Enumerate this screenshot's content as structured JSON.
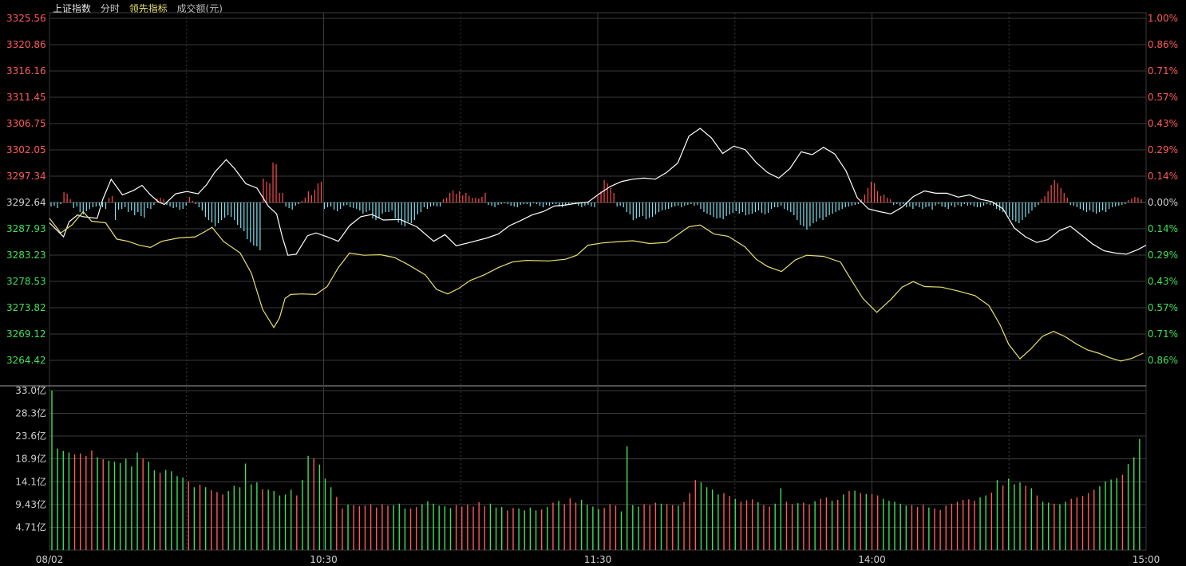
{
  "header": {
    "index_name": "上证指数",
    "mode": "分时",
    "indicator": "领先指标",
    "volume_label": "成交额(元)"
  },
  "colors": {
    "up": "#ff5a5a",
    "down": "#3fe05a",
    "price_line": "#ffffff",
    "lead_line": "#e8e070",
    "bar_up": "#ff4d4d",
    "bar_down": "#7fe3f2",
    "grid": "#3a3a3a",
    "neutral": "#cfcfcf"
  },
  "chart_data": {
    "type": "line",
    "base_price": 3292.64,
    "price_axis": {
      "ticks_up": [
        "3325.56",
        "3320.86",
        "3316.16",
        "3311.45",
        "3306.75",
        "3302.05",
        "3297.34"
      ],
      "tick_zero": "3292.64",
      "ticks_down": [
        "3287.93",
        "3283.23",
        "3278.53",
        "3273.82",
        "3269.12",
        "3264.42"
      ]
    },
    "pct_axis": {
      "ticks_up": [
        "1.00%",
        "0.86%",
        "0.71%",
        "0.57%",
        "0.43%",
        "0.29%",
        "0.14%"
      ],
      "tick_zero": "0.00%",
      "ticks_down": [
        "0.14%",
        "0.29%",
        "0.43%",
        "0.57%",
        "0.71%",
        "0.86%"
      ]
    },
    "volume_axis": {
      "ticks": [
        "33.0亿",
        "28.3亿",
        "23.6亿",
        "18.9亿",
        "14.1亿",
        "9.43亿",
        "4.71亿"
      ],
      "max": 33.0
    },
    "time_axis": [
      "08/02",
      "10:30",
      "11:30",
      "14:00",
      "15:00"
    ],
    "series": [
      {
        "key": "price",
        "points": [
          [
            0,
            3289.0
          ],
          [
            5,
            3286.5
          ],
          [
            7,
            3289.2
          ],
          [
            10,
            3290.4
          ],
          [
            12,
            3290.1
          ],
          [
            17,
            3289.8
          ],
          [
            19,
            3293.2
          ],
          [
            22,
            3296.8
          ],
          [
            26,
            3294.0
          ],
          [
            30,
            3294.8
          ],
          [
            33,
            3295.7
          ],
          [
            36,
            3294.0
          ],
          [
            39,
            3292.7
          ],
          [
            41,
            3292.3
          ],
          [
            45,
            3294.2
          ],
          [
            49,
            3294.6
          ],
          [
            53,
            3294.2
          ],
          [
            56,
            3295.8
          ],
          [
            59,
            3298.1
          ],
          [
            63,
            3300.3
          ],
          [
            66,
            3298.7
          ],
          [
            70,
            3296.0
          ],
          [
            74,
            3295.2
          ],
          [
            78,
            3292.0
          ],
          [
            81,
            3290.6
          ],
          [
            83,
            3286.5
          ],
          [
            85,
            3283.2
          ],
          [
            88,
            3283.4
          ],
          [
            92,
            3286.7
          ],
          [
            95,
            3287.2
          ],
          [
            99,
            3286.5
          ],
          [
            103,
            3285.7
          ],
          [
            107,
            3288.5
          ],
          [
            111,
            3290.1
          ],
          [
            115,
            3290.5
          ],
          [
            119,
            3289.5
          ],
          [
            125,
            3289.6
          ],
          [
            131,
            3288.3
          ],
          [
            137,
            3285.7
          ],
          [
            141,
            3286.9
          ],
          [
            145,
            3284.9
          ],
          [
            150,
            3285.5
          ],
          [
            156,
            3286.3
          ],
          [
            160,
            3287.0
          ],
          [
            164,
            3288.5
          ],
          [
            168,
            3289.4
          ],
          [
            172,
            3290.4
          ],
          [
            176,
            3291.0
          ],
          [
            180,
            3292.0
          ],
          [
            184,
            3292.2
          ],
          [
            188,
            3292.5
          ],
          [
            192,
            3292.7
          ],
          [
            196,
            3294.2
          ],
          [
            200,
            3295.5
          ],
          [
            204,
            3296.4
          ],
          [
            208,
            3296.8
          ],
          [
            212,
            3297.0
          ],
          [
            216,
            3296.8
          ],
          [
            220,
            3298.0
          ],
          [
            224,
            3299.7
          ],
          [
            228,
            3304.5
          ],
          [
            232,
            3305.9
          ],
          [
            236,
            3304.2
          ],
          [
            240,
            3301.4
          ],
          [
            244,
            3302.7
          ],
          [
            248,
            3302.1
          ],
          [
            252,
            3299.8
          ],
          [
            256,
            3298.0
          ],
          [
            260,
            3297.0
          ],
          [
            264,
            3298.7
          ],
          [
            268,
            3301.7
          ],
          [
            272,
            3301.2
          ],
          [
            276,
            3302.5
          ],
          [
            280,
            3301.3
          ],
          [
            284,
            3298.3
          ],
          [
            288,
            3293.5
          ],
          [
            292,
            3291.5
          ],
          [
            296,
            3291.0
          ],
          [
            300,
            3290.6
          ],
          [
            304,
            3291.8
          ],
          [
            308,
            3293.7
          ],
          [
            312,
            3294.7
          ],
          [
            316,
            3294.3
          ],
          [
            320,
            3294.3
          ],
          [
            324,
            3293.6
          ],
          [
            328,
            3294.0
          ],
          [
            332,
            3293.2
          ],
          [
            336,
            3292.8
          ],
          [
            340,
            3291.5
          ],
          [
            344,
            3288.1
          ],
          [
            348,
            3286.5
          ],
          [
            352,
            3285.5
          ],
          [
            356,
            3286.0
          ],
          [
            360,
            3287.6
          ],
          [
            364,
            3288.4
          ],
          [
            368,
            3286.8
          ],
          [
            372,
            3285.2
          ],
          [
            376,
            3284.0
          ],
          [
            380,
            3283.6
          ],
          [
            384,
            3283.4
          ],
          [
            388,
            3284.2
          ],
          [
            391,
            3285.0
          ]
        ]
      },
      {
        "key": "lead",
        "points": [
          [
            0,
            3289.8
          ],
          [
            4,
            3287.2
          ],
          [
            8,
            3288.6
          ],
          [
            12,
            3291.0
          ],
          [
            15,
            3289.3
          ],
          [
            20,
            3289.0
          ],
          [
            24,
            3286.1
          ],
          [
            28,
            3285.7
          ],
          [
            32,
            3285.0
          ],
          [
            36,
            3284.6
          ],
          [
            40,
            3285.7
          ],
          [
            46,
            3286.3
          ],
          [
            52,
            3286.5
          ],
          [
            56,
            3287.6
          ],
          [
            58,
            3288.2
          ],
          [
            62,
            3285.7
          ],
          [
            68,
            3283.6
          ],
          [
            72,
            3280.0
          ],
          [
            76,
            3273.5
          ],
          [
            80,
            3270.3
          ],
          [
            82,
            3272.0
          ],
          [
            84,
            3275.5
          ],
          [
            86,
            3276.2
          ],
          [
            90,
            3276.3
          ],
          [
            95,
            3276.2
          ],
          [
            99,
            3277.6
          ],
          [
            103,
            3281.0
          ],
          [
            107,
            3283.6
          ],
          [
            112,
            3283.2
          ],
          [
            118,
            3283.3
          ],
          [
            123,
            3282.8
          ],
          [
            128,
            3281.5
          ],
          [
            134,
            3279.7
          ],
          [
            138,
            3277.1
          ],
          [
            142,
            3276.3
          ],
          [
            146,
            3277.3
          ],
          [
            150,
            3278.7
          ],
          [
            155,
            3279.7
          ],
          [
            160,
            3281.0
          ],
          [
            165,
            3282.0
          ],
          [
            170,
            3282.3
          ],
          [
            178,
            3282.2
          ],
          [
            184,
            3282.5
          ],
          [
            188,
            3283.2
          ],
          [
            192,
            3285.0
          ],
          [
            197,
            3285.4
          ],
          [
            202,
            3285.6
          ],
          [
            208,
            3285.8
          ],
          [
            214,
            3285.3
          ],
          [
            220,
            3285.5
          ],
          [
            224,
            3286.9
          ],
          [
            228,
            3288.3
          ],
          [
            232,
            3288.6
          ],
          [
            237,
            3287.0
          ],
          [
            242,
            3286.6
          ],
          [
            248,
            3284.7
          ],
          [
            252,
            3282.5
          ],
          [
            256,
            3281.2
          ],
          [
            261,
            3280.3
          ],
          [
            266,
            3282.4
          ],
          [
            270,
            3283.2
          ],
          [
            276,
            3283.0
          ],
          [
            282,
            3282.0
          ],
          [
            286,
            3278.7
          ],
          [
            290,
            3275.5
          ],
          [
            295,
            3273.0
          ],
          [
            300,
            3275.3
          ],
          [
            304,
            3277.5
          ],
          [
            308,
            3278.5
          ],
          [
            312,
            3277.6
          ],
          [
            318,
            3277.5
          ],
          [
            324,
            3276.8
          ],
          [
            330,
            3276.0
          ],
          [
            335,
            3274.2
          ],
          [
            339,
            3270.7
          ],
          [
            342,
            3267.3
          ],
          [
            346,
            3264.7
          ],
          [
            350,
            3266.5
          ],
          [
            354,
            3268.7
          ],
          [
            358,
            3269.6
          ],
          [
            362,
            3268.7
          ],
          [
            366,
            3267.4
          ],
          [
            370,
            3266.3
          ],
          [
            374,
            3265.7
          ],
          [
            378,
            3264.9
          ],
          [
            382,
            3264.3
          ],
          [
            386,
            3264.8
          ],
          [
            390,
            3265.7
          ]
        ]
      }
    ],
    "lead_bars": [
      -5,
      -4,
      -7,
      -2,
      13,
      11,
      4,
      -7,
      -5,
      -12,
      -15,
      -11,
      -8,
      -6,
      -5,
      -4,
      -6,
      -8,
      6,
      8,
      -22,
      -9,
      -8,
      -6,
      -12,
      -10,
      -16,
      -12,
      -17,
      -19,
      -7,
      -8,
      -3,
      5,
      6,
      4,
      -3,
      -5,
      -7,
      -6,
      -9,
      -8,
      -4,
      7,
      2,
      -2,
      -6,
      -10,
      -18,
      -22,
      -25,
      -30,
      -26,
      -22,
      -19,
      -16,
      -18,
      -22,
      -28,
      -32,
      -36,
      -46,
      -50,
      -54,
      -55,
      -60,
      30,
      26,
      24,
      50,
      48,
      12,
      12,
      -5,
      -7,
      -9,
      -4,
      -2,
      2,
      6,
      14,
      9,
      16,
      24,
      26,
      -8,
      -6,
      -5,
      -9,
      -11,
      -8,
      -4,
      -3,
      -6,
      -7,
      -8,
      -10,
      -14,
      -12,
      -10,
      -20,
      -22,
      -19,
      -14,
      -12,
      -12,
      -10,
      -20,
      -25,
      -28,
      -30,
      -24,
      -26,
      -22,
      -15,
      -12,
      -6,
      -8,
      -5,
      -4,
      -5,
      -5,
      4,
      6,
      12,
      15,
      11,
      14,
      9,
      12,
      8,
      6,
      6,
      5,
      7,
      12,
      -3,
      -4,
      -6,
      -3,
      -2,
      -1,
      -2,
      -4,
      -5,
      -6,
      -3,
      -2,
      -2,
      -5,
      -1,
      -2,
      -4,
      -6,
      -3,
      -4,
      -2,
      -2,
      -5,
      -6,
      -4,
      -3,
      -2,
      -2,
      -4,
      -6,
      -4,
      -3,
      -5,
      -6,
      8,
      14,
      28,
      24,
      18,
      12,
      -5,
      -4,
      -6,
      -12,
      -15,
      -22,
      -20,
      -18,
      -17,
      -21,
      -19,
      -18,
      -15,
      -12,
      -10,
      -9,
      -8,
      -6,
      -5,
      -4,
      -6,
      -4,
      -3,
      -2,
      -4,
      -3,
      -8,
      -12,
      -14,
      -16,
      -18,
      -20,
      -19,
      -21,
      -17,
      -15,
      -13,
      -11,
      -14,
      -12,
      -16,
      -15,
      -14,
      -12,
      -10,
      -13,
      -15,
      -13,
      -8,
      -6,
      -6,
      -4,
      -8,
      -10,
      -12,
      -16,
      -22,
      -28,
      -30,
      -34,
      -30,
      -26,
      -24,
      -20,
      -22,
      -18,
      -16,
      -14,
      -12,
      -10,
      -8,
      -6,
      -5,
      -4,
      -3,
      -2,
      4,
      10,
      18,
      26,
      24,
      14,
      8,
      10,
      6,
      4,
      -3,
      -2,
      -4,
      -2,
      -6,
      -5,
      -8,
      -4,
      -6,
      -8,
      -6,
      -5,
      -9,
      -4,
      -2,
      -5,
      -6,
      -8,
      -4,
      -6,
      -3,
      -5,
      -2,
      -4,
      -3,
      -5,
      -6,
      -6,
      -4,
      -2,
      -3,
      -4,
      -8,
      -10,
      -12,
      -15,
      -18,
      -22,
      -24,
      -26,
      -22,
      -18,
      -14,
      -10,
      -6,
      -3,
      4,
      8,
      14,
      22,
      28,
      24,
      18,
      12,
      6,
      -3,
      -4,
      -6,
      -8,
      -10,
      -12,
      -10,
      -12,
      -14,
      -12,
      -10,
      -12,
      -8,
      -6,
      -5,
      -4,
      -3,
      -2,
      3,
      5,
      7,
      6,
      4
    ],
    "volume": [
      33.0,
      21.0,
      20.5,
      20.2,
      19.8,
      20.0,
      19.5,
      20.6,
      19.2,
      18.8,
      18.5,
      18.3,
      18.0,
      18.9,
      17.3,
      20.2,
      19.0,
      18.3,
      16.5,
      16.0,
      16.6,
      16.3,
      15.3,
      15.0,
      14.2,
      13.0,
      13.5,
      13.0,
      12.4,
      12.0,
      11.5,
      12.2,
      13.3,
      13.0,
      17.9,
      13.6,
      14.0,
      12.6,
      12.5,
      12.2,
      11.3,
      11.5,
      12.5,
      11.3,
      14.5,
      19.5,
      19.0,
      17.7,
      14.8,
      13.0,
      11.0,
      8.6,
      9.4,
      9.3,
      9.1,
      9.2,
      9.5,
      8.8,
      9.5,
      9.2,
      9.3,
      9.6,
      8.6,
      8.6,
      8.9,
      9.5,
      10.1,
      9.6,
      9.2,
      9.1,
      8.7,
      9.3,
      9.0,
      9.4,
      9.0,
      9.9,
      9.1,
      9.6,
      8.8,
      8.9,
      8.2,
      8.7,
      8.6,
      8.2,
      8.8,
      8.2,
      8.4,
      8.9,
      9.8,
      10.2,
      9.5,
      10.7,
      9.8,
      10.4,
      9.4,
      9.0,
      8.5,
      8.7,
      9.5,
      9.2,
      8.0,
      21.5,
      9.3,
      9.0,
      9.5,
      9.3,
      9.8,
      9.6,
      9.5,
      9.3,
      9.2,
      9.9,
      11.8,
      14.5,
      14.0,
      13.0,
      12.5,
      11.5,
      11.8,
      11.2,
      10.6,
      10.0,
      10.3,
      10.5,
      9.9,
      9.3,
      9.0,
      9.6,
      12.8,
      10.0,
      9.5,
      9.7,
      9.8,
      9.4,
      10.1,
      10.6,
      10.9,
      10.2,
      10.4,
      11.5,
      12.2,
      12.3,
      11.8,
      11.6,
      11.6,
      11.3,
      10.6,
      10.2,
      10.0,
      9.6,
      9.2,
      9.3,
      8.9,
      9.4,
      8.8,
      8.6,
      8.3,
      9.2,
      9.6,
      10.0,
      10.4,
      10.5,
      10.2,
      10.9,
      11.3,
      11.9,
      14.5,
      13.4,
      14.8,
      13.6,
      14.0,
      13.3,
      12.8,
      11.3,
      10.0,
      9.8,
      9.6,
      9.5,
      10.0,
      10.6,
      10.9,
      11.2,
      11.8,
      12.5,
      13.2,
      14.2,
      14.6,
      14.9,
      15.6,
      17.8,
      19.2,
      23.0
    ]
  }
}
